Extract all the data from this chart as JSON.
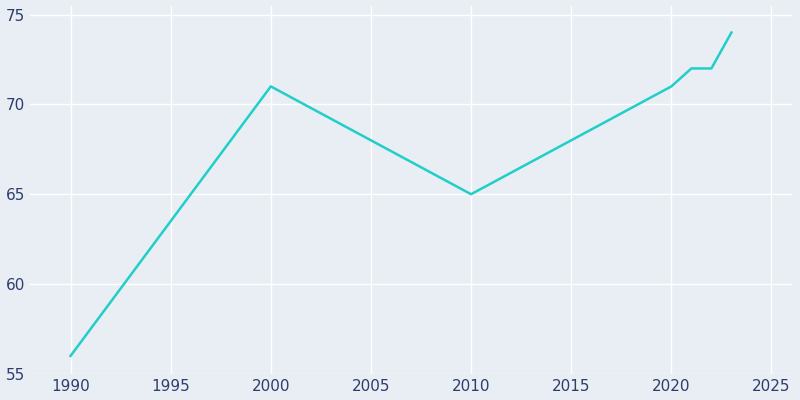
{
  "years": [
    1990,
    2000,
    2010,
    2020,
    2021,
    2022,
    2023
  ],
  "population": [
    56,
    71,
    65,
    71,
    72,
    72,
    74
  ],
  "line_color": "#22CEC8",
  "line_width": 1.8,
  "bg_color": "#E8EEF4",
  "axes_bg_color": "#E8EEF4",
  "grid_color": "#FFFFFF",
  "tick_color": "#2E3D6B",
  "xlim": [
    1988,
    2026
  ],
  "ylim": [
    55,
    75.5
  ],
  "xticks": [
    1990,
    1995,
    2000,
    2005,
    2010,
    2015,
    2020,
    2025
  ],
  "yticks": [
    55,
    60,
    65,
    70,
    75
  ],
  "tick_fontsize": 11
}
